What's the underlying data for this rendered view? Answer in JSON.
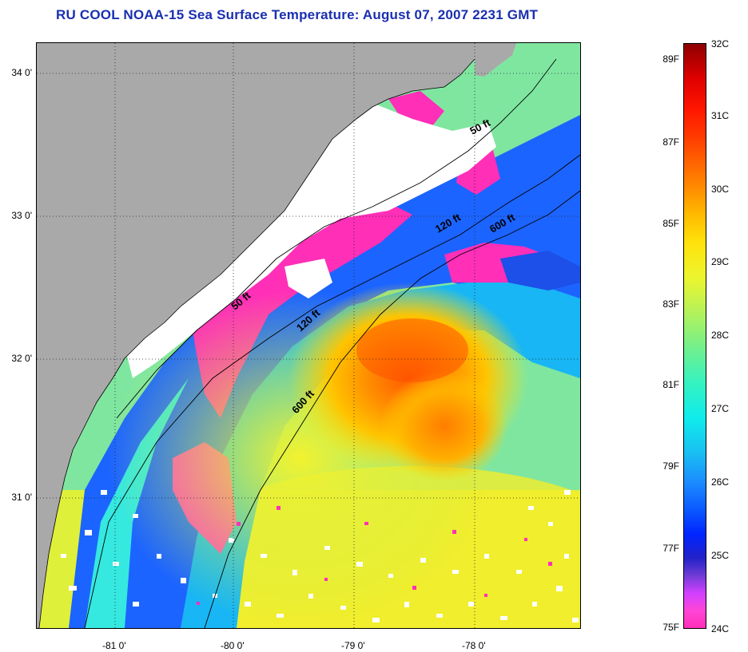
{
  "title": "RU COOL  NOAA-15  Sea Surface Temperature:  August 07, 2007 2231 GMT",
  "lat_labels": [
    "34 0'",
    "33 0'",
    "32 0'",
    "31 0'"
  ],
  "lon_labels": [
    "-81 0'",
    "-80 0'",
    "-79 0'",
    "-78 0'"
  ],
  "contour_labels": [
    "50 ft",
    "120 ft",
    "600 ft",
    "50 ft",
    "120 ft",
    "600 ft"
  ],
  "colorbar": {
    "fahrenheit_ticks": [
      "89F",
      "87F",
      "85F",
      "83F",
      "81F",
      "79F",
      "77F",
      "75F"
    ],
    "celsius_ticks": [
      "32C",
      "31C",
      "30C",
      "29C",
      "28C",
      "27C",
      "26C",
      "25C",
      "24C"
    ],
    "range_f": [
      75,
      89
    ],
    "range_c": [
      24,
      32
    ]
  },
  "colors": {
    "title": "#1a2fb0",
    "land": "#a9a9a9",
    "cloud_mask": "#ffffff",
    "coldest": "#ff2fb8",
    "warmest": "#8e0000"
  }
}
